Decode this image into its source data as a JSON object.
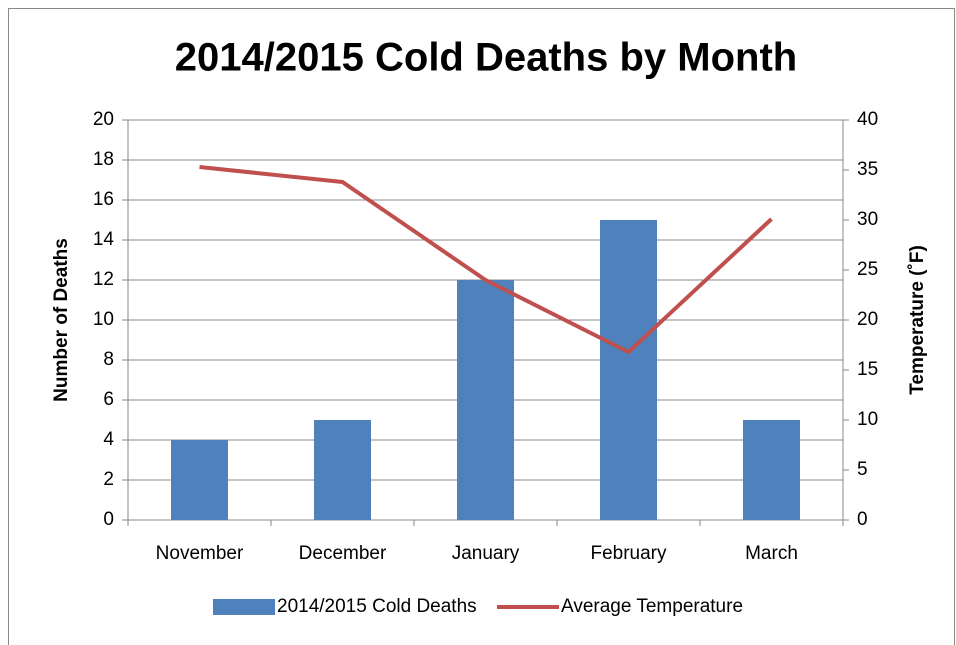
{
  "chart_data": {
    "type": "combo",
    "title": "2014/2015 Cold Deaths by Month",
    "y_label": "Number of Deaths",
    "y2_label": "Temperature (˚F)",
    "categories": [
      "November",
      "December",
      "January",
      "February",
      "March"
    ],
    "series": [
      {
        "name": "2014/2015 Cold Deaths",
        "type": "bar",
        "color": "#4f81bd",
        "values": [
          4,
          5,
          12,
          15,
          5
        ]
      },
      {
        "name": "Average Temperature",
        "type": "line",
        "axis": "y2",
        "color": "#c0504d",
        "values": [
          35.3,
          33.8,
          24,
          16.8,
          30.1
        ]
      }
    ],
    "ylim": [
      0,
      20
    ],
    "yticks": [
      0,
      2,
      4,
      6,
      8,
      10,
      12,
      14,
      16,
      18,
      20
    ],
    "y2lim": [
      0,
      40
    ],
    "y2ticks": [
      0,
      5,
      10,
      15,
      20,
      25,
      30,
      35,
      40
    ],
    "grid": true,
    "legend": "bottom"
  }
}
